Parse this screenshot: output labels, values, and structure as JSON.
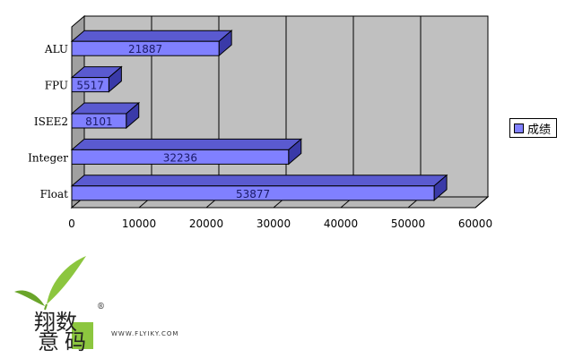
{
  "chart_data": {
    "type": "bar",
    "orientation": "horizontal",
    "style": "3d",
    "categories": [
      "ALU",
      "FPU",
      "ISEE2",
      "Integer",
      "Float"
    ],
    "series": [
      {
        "name": "成绩",
        "values": [
          21887,
          5517,
          8101,
          32236,
          53877
        ],
        "color": "#8080ff"
      }
    ],
    "xlim": [
      0,
      60000
    ],
    "x_ticks": [
      0,
      10000,
      20000,
      30000,
      40000,
      50000,
      60000
    ],
    "x_tick_labels": [
      "0",
      "10000",
      "20000",
      "30000",
      "40000",
      "50000",
      "60000"
    ],
    "data_labels": [
      "21887",
      "5517",
      "8101",
      "32236",
      "53877"
    ],
    "grid": true,
    "legend": "right",
    "wall_color": "#c0c0c0"
  },
  "legend": {
    "label": "成绩",
    "color": "#8080ff"
  },
  "watermark": {
    "logo_top": "翔数",
    "logo_bottom": "意码",
    "url": "WWW.FLYIKY.COM",
    "registered": "®"
  }
}
